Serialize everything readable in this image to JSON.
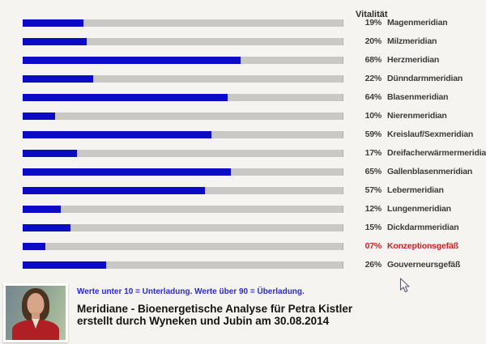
{
  "chart_data": {
    "type": "bar",
    "orientation": "horizontal",
    "title": "Vitalität",
    "xlabel": "",
    "ylabel": "",
    "xlim": [
      0,
      100
    ],
    "grid": false,
    "legend_position": "none",
    "categories": [
      "Magenmeridian",
      "Milzmeridian",
      "Herzmeridian",
      "Dünndarmmeridian",
      "Blasenmeridian",
      "Nierenmeridian",
      "Kreislauf/Sexmeridian",
      "Dreifacherwärmermeridian",
      "Gallenblasenmeridian",
      "Lebermeridian",
      "Lungenmeridian",
      "Dickdarmmeridian",
      "Konzeptionsgefäß",
      "Gouverneursgefäß"
    ],
    "values": [
      19,
      20,
      68,
      22,
      64,
      10,
      59,
      17,
      65,
      57,
      12,
      15,
      7,
      26
    ],
    "rows": [
      {
        "name": "Magenmeridian",
        "pct_label": "19%",
        "value": 19,
        "alert": false
      },
      {
        "name": "Milzmeridian",
        "pct_label": "20%",
        "value": 20,
        "alert": false
      },
      {
        "name": "Herzmeridian",
        "pct_label": "68%",
        "value": 68,
        "alert": false
      },
      {
        "name": "Dünndarmmeridian",
        "pct_label": "22%",
        "value": 22,
        "alert": false
      },
      {
        "name": "Blasenmeridian",
        "pct_label": "64%",
        "value": 64,
        "alert": false
      },
      {
        "name": "Nierenmeridian",
        "pct_label": "10%",
        "value": 10,
        "alert": false
      },
      {
        "name": "Kreislauf/Sexmeridian",
        "pct_label": "59%",
        "value": 59,
        "alert": false
      },
      {
        "name": "Dreifacherwärmermeridian",
        "pct_label": "17%",
        "value": 17,
        "alert": false
      },
      {
        "name": "Gallenblasenmeridian",
        "pct_label": "65%",
        "value": 65,
        "alert": false
      },
      {
        "name": "Lebermeridian",
        "pct_label": "57%",
        "value": 57,
        "alert": false
      },
      {
        "name": "Lungenmeridian",
        "pct_label": "12%",
        "value": 12,
        "alert": false
      },
      {
        "name": "Dickdarmmeridian",
        "pct_label": "15%",
        "value": 15,
        "alert": false
      },
      {
        "name": "Konzeptionsgefäß",
        "pct_label": "07%",
        "value": 7,
        "alert": true
      },
      {
        "name": "Gouverneursgefäß",
        "pct_label": "26%",
        "value": 26,
        "alert": false
      }
    ]
  },
  "header": {
    "vitality_label": "Vitalität"
  },
  "footer": {
    "note": "Werte unter 10 = Unterladung. Werte über 90 = Überladung.",
    "title_line1": "Meridiane - Bioenergetische Analyse für Petra Kistler",
    "title_line2": "erstellt durch Wyneken und Jubin am 30.08.2014",
    "photo": "portrait-of-woman-in-red-jacket"
  },
  "colors": {
    "bar_fill": "#0b0bc6",
    "bar_track": "#c9c8c6",
    "alert_text": "#cc2222",
    "label_text": "#3c3c3c",
    "note_text": "#2a2acc",
    "title_text": "#141414",
    "background": "#f5f4f1"
  }
}
